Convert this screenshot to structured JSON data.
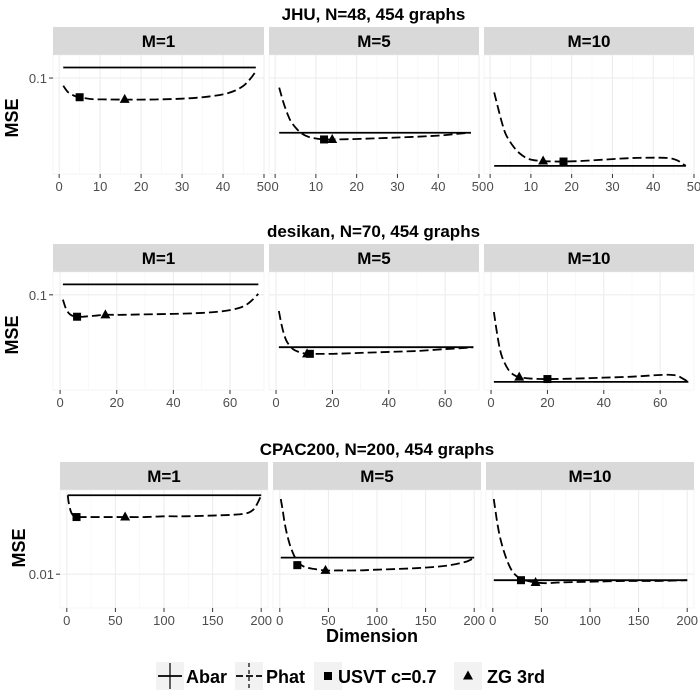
{
  "chart_data": [
    {
      "type": "line",
      "title": "JHU, N=48, 454 graphs",
      "ylabel": "MSE",
      "xlabel": "",
      "x_ticks": [
        0,
        10,
        20,
        30,
        40,
        50
      ],
      "x_tick_labels": [
        "0",
        "10",
        "20",
        "30",
        "40",
        "50"
      ],
      "xlim": [
        -1.5,
        50
      ],
      "y_ticks": [
        0.1
      ],
      "y_tick_labels": [
        "0.1"
      ],
      "ylim": [
        0.0,
        0.124
      ],
      "panels": [
        {
          "label": "M=1",
          "series": [
            {
              "name": "Abar",
              "x": [
                1,
                48
              ],
              "y": [
                0.111,
                0.111
              ]
            },
            {
              "name": "Phat",
              "x": [
                1,
                2,
                3,
                4,
                5,
                8,
                12,
                16,
                20,
                25,
                30,
                35,
                40,
                43,
                45,
                46,
                47,
                48
              ],
              "y": [
                0.092,
                0.086,
                0.083,
                0.081,
                0.08,
                0.078,
                0.0777,
                0.0775,
                0.0775,
                0.0778,
                0.0785,
                0.08,
                0.083,
                0.087,
                0.092,
                0.096,
                0.101,
                0.107
              ]
            },
            {
              "name": "USVT c=0.7",
              "x": [
                5
              ],
              "y": [
                0.08
              ]
            },
            {
              "name": "ZG 3rd",
              "x": [
                16
              ],
              "y": [
                0.0777
              ]
            }
          ]
        },
        {
          "label": "M=5",
          "series": [
            {
              "name": "Abar",
              "x": [
                1,
                48
              ],
              "y": [
                0.043,
                0.043
              ]
            },
            {
              "name": "Phat",
              "x": [
                1,
                2,
                3,
                4,
                6,
                8,
                10,
                12,
                14,
                20,
                30,
                40,
                45,
                48
              ],
              "y": [
                0.09,
                0.075,
                0.063,
                0.054,
                0.044,
                0.039,
                0.037,
                0.036,
                0.036,
                0.0365,
                0.038,
                0.04,
                0.042,
                0.043
              ]
            },
            {
              "name": "USVT c=0.7",
              "x": [
                12
              ],
              "y": [
                0.036
              ]
            },
            {
              "name": "ZG 3rd",
              "x": [
                14
              ],
              "y": [
                0.036
              ]
            }
          ]
        },
        {
          "label": "M=10",
          "series": [
            {
              "name": "Abar",
              "x": [
                1,
                48
              ],
              "y": [
                0.0085,
                0.0085
              ]
            },
            {
              "name": "Phat",
              "x": [
                1,
                2,
                3,
                4,
                6,
                8,
                10,
                13,
                16,
                18,
                22,
                28,
                34,
                40,
                44,
                46,
                47,
                48
              ],
              "y": [
                0.085,
                0.068,
                0.052,
                0.04,
                0.027,
                0.019,
                0.015,
                0.0135,
                0.013,
                0.013,
                0.0135,
                0.015,
                0.0165,
                0.017,
                0.0165,
                0.014,
                0.011,
                0.0085
              ]
            },
            {
              "name": "USVT c=0.7",
              "x": [
                18
              ],
              "y": [
                0.013
              ]
            },
            {
              "name": "ZG 3rd",
              "x": [
                13
              ],
              "y": [
                0.0135
              ]
            }
          ]
        }
      ]
    },
    {
      "type": "line",
      "title": "desikan, N=70, 454 graphs",
      "ylabel": "MSE",
      "xlabel": "",
      "x_ticks": [
        0,
        20,
        40,
        60
      ],
      "x_tick_labels": [
        "0",
        "20",
        "40",
        "60"
      ],
      "xlim": [
        -2.5,
        72
      ],
      "y_ticks": [
        0.1
      ],
      "y_tick_labels": [
        "0.1"
      ],
      "ylim": [
        0.0,
        0.124
      ],
      "panels": [
        {
          "label": "M=1",
          "series": [
            {
              "name": "Abar",
              "x": [
                1,
                70
              ],
              "y": [
                0.111,
                0.111
              ]
            },
            {
              "name": "Phat",
              "x": [
                1,
                2,
                3,
                4,
                5,
                6,
                8,
                12,
                16,
                22,
                30,
                40,
                50,
                58,
                63,
                66,
                68,
                70
              ],
              "y": [
                0.095,
                0.086,
                0.081,
                0.0785,
                0.0775,
                0.077,
                0.077,
                0.078,
                0.079,
                0.079,
                0.0795,
                0.08,
                0.081,
                0.083,
                0.086,
                0.09,
                0.095,
                0.101
              ]
            },
            {
              "name": "USVT c=0.7",
              "x": [
                6
              ],
              "y": [
                0.077
              ]
            },
            {
              "name": "ZG 3rd",
              "x": [
                16
              ],
              "y": [
                0.079
              ]
            }
          ]
        },
        {
          "label": "M=5",
          "series": [
            {
              "name": "Abar",
              "x": [
                1,
                70
              ],
              "y": [
                0.045,
                0.045
              ]
            },
            {
              "name": "Phat",
              "x": [
                1,
                2,
                3,
                4,
                6,
                8,
                10,
                12,
                14,
                20,
                30,
                40,
                50,
                60,
                66,
                70
              ],
              "y": [
                0.083,
                0.068,
                0.057,
                0.05,
                0.043,
                0.04,
                0.0385,
                0.038,
                0.038,
                0.038,
                0.039,
                0.04,
                0.041,
                0.043,
                0.044,
                0.045
              ]
            },
            {
              "name": "USVT c=0.7",
              "x": [
                12
              ],
              "y": [
                0.038
              ]
            },
            {
              "name": "ZG 3rd",
              "x": [
                11
              ],
              "y": [
                0.038
              ]
            }
          ]
        },
        {
          "label": "M=10",
          "series": [
            {
              "name": "Abar",
              "x": [
                1,
                70
              ],
              "y": [
                0.0085,
                0.0085
              ]
            },
            {
              "name": "Phat",
              "x": [
                1,
                2,
                3,
                4,
                6,
                8,
                10,
                14,
                20,
                30,
                40,
                50,
                58,
                63,
                66,
                68,
                70
              ],
              "y": [
                0.082,
                0.062,
                0.045,
                0.034,
                0.022,
                0.016,
                0.0135,
                0.012,
                0.0115,
                0.012,
                0.013,
                0.014,
                0.0155,
                0.016,
                0.015,
                0.012,
                0.0085
              ]
            },
            {
              "name": "USVT c=0.7",
              "x": [
                20
              ],
              "y": [
                0.0115
              ]
            },
            {
              "name": "ZG 3rd",
              "x": [
                10
              ],
              "y": [
                0.0135
              ]
            }
          ]
        }
      ]
    },
    {
      "type": "line",
      "title": "CPAC200, N=200, 454 graphs",
      "ylabel": "MSE",
      "xlabel": "Dimension",
      "x_ticks": [
        0,
        50,
        100,
        150,
        200
      ],
      "x_tick_labels": [
        "0",
        "50",
        "100",
        "150",
        "200"
      ],
      "xlim": [
        -7,
        207
      ],
      "y_ticks": [
        0.01
      ],
      "y_tick_labels": [
        "0.01"
      ],
      "ylim": [
        0.0055,
        0.0212
      ],
      "panels": [
        {
          "label": "M=1",
          "series": [
            {
              "name": "Abar",
              "x": [
                1,
                200
              ],
              "y": [
                0.0205,
                0.0205
              ]
            },
            {
              "name": "Phat",
              "x": [
                1,
                2,
                4,
                6,
                8,
                10,
                15,
                20,
                40,
                60,
                80,
                100,
                120,
                150,
                170,
                185,
                192,
                196,
                200
              ],
              "y": [
                0.0205,
                0.0195,
                0.0184,
                0.0179,
                0.0177,
                0.0176,
                0.0176,
                0.0176,
                0.0176,
                0.0176,
                0.0176,
                0.0177,
                0.0177,
                0.0178,
                0.0179,
                0.0181,
                0.0186,
                0.0194,
                0.0205
              ]
            },
            {
              "name": "USVT c=0.7",
              "x": [
                10
              ],
              "y": [
                0.0176
              ]
            },
            {
              "name": "ZG 3rd",
              "x": [
                60
              ],
              "y": [
                0.0176
              ]
            }
          ]
        },
        {
          "label": "M=5",
          "series": [
            {
              "name": "Abar",
              "x": [
                1,
                200
              ],
              "y": [
                0.0122,
                0.0122
              ]
            },
            {
              "name": "Phat",
              "x": [
                1,
                3,
                5,
                8,
                12,
                18,
                25,
                35,
                47,
                60,
                80,
                100,
                140,
                170,
                190,
                196,
                200
              ],
              "y": [
                0.02,
                0.0185,
                0.0168,
                0.015,
                0.0133,
                0.0117,
                0.011,
                0.0107,
                0.0105,
                0.0105,
                0.0105,
                0.0106,
                0.0108,
                0.0111,
                0.0116,
                0.0119,
                0.0122
              ]
            },
            {
              "name": "USVT c=0.7",
              "x": [
                18
              ],
              "y": [
                0.0112
              ]
            },
            {
              "name": "ZG 3rd",
              "x": [
                47
              ],
              "y": [
                0.0105
              ]
            }
          ]
        },
        {
          "label": "M=10",
          "series": [
            {
              "name": "Abar",
              "x": [
                1,
                200
              ],
              "y": [
                0.0092,
                0.0092
              ]
            },
            {
              "name": "Phat",
              "x": [
                1,
                3,
                5,
                8,
                12,
                16,
                20,
                25,
                30,
                36,
                44,
                55,
                70,
                100,
                140,
                170,
                200
              ],
              "y": [
                0.02,
                0.0182,
                0.0165,
                0.0146,
                0.0128,
                0.0114,
                0.0104,
                0.0097,
                0.0093,
                0.0091,
                0.0089,
                0.0088,
                0.0089,
                0.009,
                0.0091,
                0.0091,
                0.0092
              ]
            },
            {
              "name": "USVT c=0.7",
              "x": [
                29
              ],
              "y": [
                0.0092
              ]
            },
            {
              "name": "ZG 3rd",
              "x": [
                44
              ],
              "y": [
                0.0089
              ]
            }
          ]
        }
      ]
    }
  ],
  "legend": {
    "placement": "bottom",
    "entries": [
      {
        "name": "Abar",
        "symbol": "solid-line"
      },
      {
        "name": "Phat",
        "symbol": "dashed-line"
      },
      {
        "name": "USVT c=0.7",
        "symbol": "square"
      },
      {
        "name": "ZG 3rd",
        "symbol": "triangle"
      }
    ]
  },
  "colors": {
    "strip_background": "#d9d9d9",
    "panel_background": "#ffffff",
    "grid_major": "#ebebeb",
    "grid_minor": "#f5f5f5",
    "ink": "#000000",
    "tick_text": "#4d4d4d"
  }
}
